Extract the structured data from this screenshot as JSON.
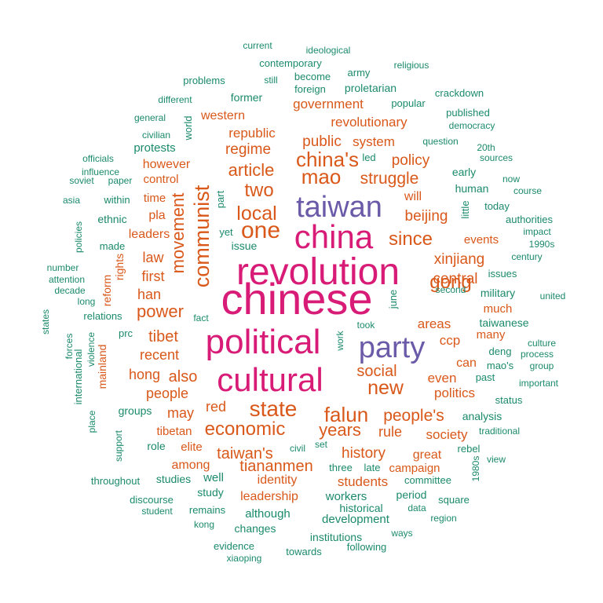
{
  "colors": {
    "tier1": "#d81b76",
    "tier2": "#6a5aa8",
    "tier3": "#d9581a",
    "tier4": "#1b8a6b"
  },
  "words": [
    {
      "text": "chinese",
      "tier": 1
    },
    {
      "text": "revolution",
      "tier": 1
    },
    {
      "text": "political",
      "tier": 1
    },
    {
      "text": "cultural",
      "tier": 1
    },
    {
      "text": "china",
      "tier": 1
    },
    {
      "text": "taiwan",
      "tier": 2
    },
    {
      "text": "party",
      "tier": 2
    },
    {
      "text": "communist",
      "tier": 3
    },
    {
      "text": "one",
      "tier": 3
    },
    {
      "text": "mao",
      "tier": 3
    },
    {
      "text": "china's",
      "tier": 3
    },
    {
      "text": "state",
      "tier": 3
    },
    {
      "text": "falun",
      "tier": 3
    },
    {
      "text": "economic",
      "tier": 3
    },
    {
      "text": "new",
      "tier": 3
    },
    {
      "text": "local",
      "tier": 3
    },
    {
      "text": "two",
      "tier": 3
    },
    {
      "text": "article",
      "tier": 3
    },
    {
      "text": "movement",
      "tier": 3
    },
    {
      "text": "since",
      "tier": 3
    },
    {
      "text": "gong",
      "tier": 3
    },
    {
      "text": "power",
      "tier": 3
    },
    {
      "text": "people's",
      "tier": 3
    },
    {
      "text": "taiwan's",
      "tier": 3
    },
    {
      "text": "years",
      "tier": 3
    },
    {
      "text": "tiananmen",
      "tier": 3
    },
    {
      "text": "also",
      "tier": 3
    },
    {
      "text": "tibet",
      "tier": 3
    },
    {
      "text": "struggle",
      "tier": 3
    },
    {
      "text": "policy",
      "tier": 3
    },
    {
      "text": "public",
      "tier": 3
    },
    {
      "text": "social",
      "tier": 3
    },
    {
      "text": "history",
      "tier": 3
    },
    {
      "text": "xinjiang",
      "tier": 3
    },
    {
      "text": "beijing",
      "tier": 3
    },
    {
      "text": "central",
      "tier": 3
    },
    {
      "text": "regime",
      "tier": 3
    },
    {
      "text": "republic",
      "tier": 3
    },
    {
      "text": "revolutionary",
      "tier": 3
    },
    {
      "text": "government",
      "tier": 3
    },
    {
      "text": "first",
      "tier": 3
    },
    {
      "text": "law",
      "tier": 3
    },
    {
      "text": "han",
      "tier": 3
    },
    {
      "text": "recent",
      "tier": 3
    },
    {
      "text": "people",
      "tier": 3
    },
    {
      "text": "hong",
      "tier": 3
    },
    {
      "text": "red",
      "tier": 3
    },
    {
      "text": "may",
      "tier": 3
    },
    {
      "text": "rule",
      "tier": 3
    },
    {
      "text": "society",
      "tier": 3
    },
    {
      "text": "even",
      "tier": 3
    },
    {
      "text": "ccp",
      "tier": 3
    },
    {
      "text": "areas",
      "tier": 3
    },
    {
      "text": "politics",
      "tier": 3
    },
    {
      "text": "can",
      "tier": 3
    },
    {
      "text": "identity",
      "tier": 3
    },
    {
      "text": "students",
      "tier": 3
    },
    {
      "text": "leadership",
      "tier": 3
    },
    {
      "text": "great",
      "tier": 3
    },
    {
      "text": "campaign",
      "tier": 3
    },
    {
      "text": "tibetan",
      "tier": 3
    },
    {
      "text": "elite",
      "tier": 3
    },
    {
      "text": "among",
      "tier": 3
    },
    {
      "text": "will",
      "tier": 3
    },
    {
      "text": "system",
      "tier": 3
    },
    {
      "text": "much",
      "tier": 3
    },
    {
      "text": "many",
      "tier": 3
    },
    {
      "text": "events",
      "tier": 3
    },
    {
      "text": "leaders",
      "tier": 3
    },
    {
      "text": "pla",
      "tier": 3
    },
    {
      "text": "time",
      "tier": 3
    },
    {
      "text": "however",
      "tier": 3
    },
    {
      "text": "western",
      "tier": 3
    },
    {
      "text": "mainland",
      "tier": 3
    },
    {
      "text": "reform",
      "tier": 3
    },
    {
      "text": "rights",
      "tier": 3
    },
    {
      "text": "protests",
      "tier": 4
    },
    {
      "text": "control",
      "tier": 3
    },
    {
      "text": "current",
      "tier": 4
    },
    {
      "text": "ideological",
      "tier": 4
    },
    {
      "text": "contemporary",
      "tier": 4
    },
    {
      "text": "army",
      "tier": 4
    },
    {
      "text": "religious",
      "tier": 4
    },
    {
      "text": "problems",
      "tier": 4
    },
    {
      "text": "still",
      "tier": 4
    },
    {
      "text": "become",
      "tier": 4
    },
    {
      "text": "foreign",
      "tier": 4
    },
    {
      "text": "proletarian",
      "tier": 4
    },
    {
      "text": "crackdown",
      "tier": 4
    },
    {
      "text": "different",
      "tier": 4
    },
    {
      "text": "former",
      "tier": 4
    },
    {
      "text": "popular",
      "tier": 4
    },
    {
      "text": "published",
      "tier": 4
    },
    {
      "text": "general",
      "tier": 4
    },
    {
      "text": "democracy",
      "tier": 4
    },
    {
      "text": "civilian",
      "tier": 4
    },
    {
      "text": "world",
      "tier": 4
    },
    {
      "text": "question",
      "tier": 4
    },
    {
      "text": "officials",
      "tier": 4
    },
    {
      "text": "led",
      "tier": 4
    },
    {
      "text": "20th",
      "tier": 4
    },
    {
      "text": "influence",
      "tier": 4
    },
    {
      "text": "sources",
      "tier": 4
    },
    {
      "text": "soviet",
      "tier": 4
    },
    {
      "text": "paper",
      "tier": 4
    },
    {
      "text": "early",
      "tier": 4
    },
    {
      "text": "now",
      "tier": 4
    },
    {
      "text": "within",
      "tier": 4
    },
    {
      "text": "human",
      "tier": 4
    },
    {
      "text": "course",
      "tier": 4
    },
    {
      "text": "asia",
      "tier": 4
    },
    {
      "text": "part",
      "tier": 4
    },
    {
      "text": "little",
      "tier": 4
    },
    {
      "text": "today",
      "tier": 4
    },
    {
      "text": "ethnic",
      "tier": 4
    },
    {
      "text": "authorities",
      "tier": 4
    },
    {
      "text": "yet",
      "tier": 4
    },
    {
      "text": "impact",
      "tier": 4
    },
    {
      "text": "policies",
      "tier": 4
    },
    {
      "text": "made",
      "tier": 4
    },
    {
      "text": "issue",
      "tier": 4
    },
    {
      "text": "1990s",
      "tier": 4
    },
    {
      "text": "century",
      "tier": 4
    },
    {
      "text": "number",
      "tier": 4
    },
    {
      "text": "attention",
      "tier": 4
    },
    {
      "text": "issues",
      "tier": 4
    },
    {
      "text": "decade",
      "tier": 4
    },
    {
      "text": "second",
      "tier": 4
    },
    {
      "text": "united",
      "tier": 4
    },
    {
      "text": "long",
      "tier": 4
    },
    {
      "text": "military",
      "tier": 4
    },
    {
      "text": "june",
      "tier": 4
    },
    {
      "text": "relations",
      "tier": 4
    },
    {
      "text": "fact",
      "tier": 4
    },
    {
      "text": "states",
      "tier": 4
    },
    {
      "text": "prc",
      "tier": 4
    },
    {
      "text": "took",
      "tier": 4
    },
    {
      "text": "taiwanese",
      "tier": 4
    },
    {
      "text": "violence",
      "tier": 4
    },
    {
      "text": "work",
      "tier": 4
    },
    {
      "text": "forces",
      "tier": 4
    },
    {
      "text": "deng",
      "tier": 4
    },
    {
      "text": "culture",
      "tier": 4
    },
    {
      "text": "process",
      "tier": 4
    },
    {
      "text": "mao's",
      "tier": 4
    },
    {
      "text": "group",
      "tier": 4
    },
    {
      "text": "past",
      "tier": 4
    },
    {
      "text": "international",
      "tier": 4
    },
    {
      "text": "important",
      "tier": 4
    },
    {
      "text": "status",
      "tier": 4
    },
    {
      "text": "groups",
      "tier": 4
    },
    {
      "text": "analysis",
      "tier": 4
    },
    {
      "text": "place",
      "tier": 4
    },
    {
      "text": "traditional",
      "tier": 4
    },
    {
      "text": "support",
      "tier": 4
    },
    {
      "text": "role",
      "tier": 4
    },
    {
      "text": "civil",
      "tier": 4
    },
    {
      "text": "set",
      "tier": 4
    },
    {
      "text": "rebel",
      "tier": 4
    },
    {
      "text": "view",
      "tier": 4
    },
    {
      "text": "three",
      "tier": 4
    },
    {
      "text": "late",
      "tier": 4
    },
    {
      "text": "throughout",
      "tier": 4
    },
    {
      "text": "studies",
      "tier": 4
    },
    {
      "text": "well",
      "tier": 4
    },
    {
      "text": "committee",
      "tier": 4
    },
    {
      "text": "1980s",
      "tier": 4
    },
    {
      "text": "study",
      "tier": 4
    },
    {
      "text": "workers",
      "tier": 4
    },
    {
      "text": "period",
      "tier": 4
    },
    {
      "text": "square",
      "tier": 4
    },
    {
      "text": "discourse",
      "tier": 4
    },
    {
      "text": "student",
      "tier": 4
    },
    {
      "text": "remains",
      "tier": 4
    },
    {
      "text": "although",
      "tier": 4
    },
    {
      "text": "historical",
      "tier": 4
    },
    {
      "text": "data",
      "tier": 4
    },
    {
      "text": "region",
      "tier": 4
    },
    {
      "text": "development",
      "tier": 4
    },
    {
      "text": "kong",
      "tier": 4
    },
    {
      "text": "changes",
      "tier": 4
    },
    {
      "text": "ways",
      "tier": 4
    },
    {
      "text": "evidence",
      "tier": 4
    },
    {
      "text": "institutions",
      "tier": 4
    },
    {
      "text": "following",
      "tier": 4
    },
    {
      "text": "xiaoping",
      "tier": 4
    },
    {
      "text": "towards",
      "tier": 4
    }
  ]
}
